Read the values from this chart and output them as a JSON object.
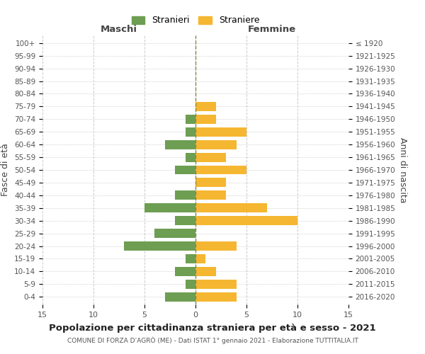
{
  "age_groups": [
    "0-4",
    "5-9",
    "10-14",
    "15-19",
    "20-24",
    "25-29",
    "30-34",
    "35-39",
    "40-44",
    "45-49",
    "50-54",
    "55-59",
    "60-64",
    "65-69",
    "70-74",
    "75-79",
    "80-84",
    "85-89",
    "90-94",
    "95-99",
    "100+"
  ],
  "birth_years": [
    "2016-2020",
    "2011-2015",
    "2006-2010",
    "2001-2005",
    "1996-2000",
    "1991-1995",
    "1986-1990",
    "1981-1985",
    "1976-1980",
    "1971-1975",
    "1966-1970",
    "1961-1965",
    "1956-1960",
    "1951-1955",
    "1946-1950",
    "1941-1945",
    "1936-1940",
    "1931-1935",
    "1926-1930",
    "1921-1925",
    "≤ 1920"
  ],
  "males": [
    3,
    1,
    2,
    1,
    7,
    4,
    2,
    5,
    2,
    0,
    2,
    1,
    3,
    1,
    1,
    0,
    0,
    0,
    0,
    0,
    0
  ],
  "females": [
    4,
    4,
    2,
    1,
    4,
    0,
    10,
    7,
    3,
    3,
    5,
    3,
    4,
    5,
    2,
    2,
    0,
    0,
    0,
    0,
    0
  ],
  "male_color": "#6d9e52",
  "female_color": "#f5b731",
  "title": "Popolazione per cittadinanza straniera per età e sesso - 2021",
  "subtitle": "COMUNE DI FORZA D’AGRÒ (ME) - Dati ISTAT 1° gennaio 2021 - Elaborazione TUTTITALIA.IT",
  "ylabel_left": "Fasce di età",
  "ylabel_right": "Anni di nascita",
  "xlabel_left": "Maschi",
  "xlabel_right": "Femmine",
  "legend_males": "Stranieri",
  "legend_females": "Straniere",
  "xlim": 15,
  "background_color": "#ffffff",
  "grid_color": "#cccccc",
  "bar_height": 0.72
}
